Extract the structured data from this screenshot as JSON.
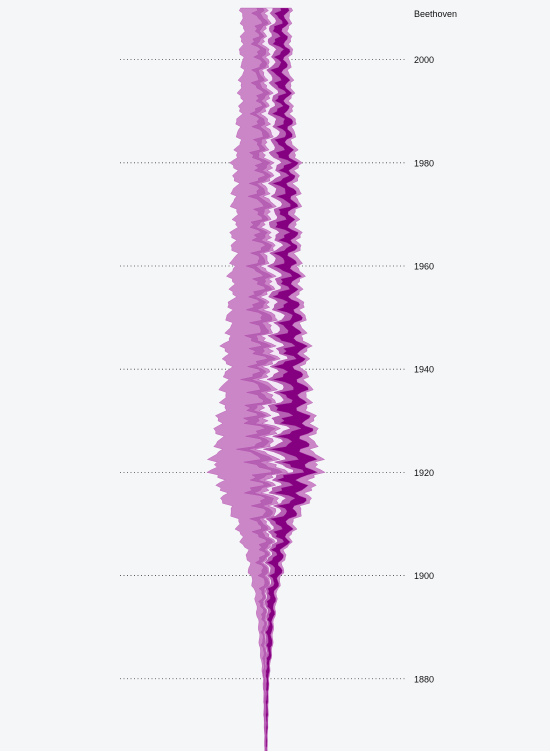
{
  "chart_data": {
    "type": "area",
    "title": "Beethoven",
    "orientation": "vertical",
    "ylim": [
      1866,
      2010
    ],
    "yticks": [
      1880,
      1900,
      1920,
      1940,
      1960,
      1980,
      2000
    ],
    "tick_labels": [
      "1880",
      "1900",
      "1920",
      "1940",
      "1960",
      "1980",
      "2000"
    ],
    "grid": true,
    "colors": {
      "background": "#f5f6f8",
      "light": "#cb86c8",
      "mid": "#b560b2",
      "pale": "#f3e9f6",
      "dark": "#850081"
    },
    "series": [
      {
        "color": "light",
        "values": [
          [
            1866,
            0.2
          ],
          [
            1880,
            0.6
          ],
          [
            1885,
            2
          ],
          [
            1890,
            3
          ],
          [
            1895,
            4
          ],
          [
            1900,
            8
          ],
          [
            1905,
            11
          ],
          [
            1910,
            16
          ],
          [
            1915,
            24
          ],
          [
            1920,
            31
          ],
          [
            1925,
            27
          ],
          [
            1930,
            24
          ],
          [
            1935,
            22
          ],
          [
            1940,
            21
          ],
          [
            1945,
            22
          ],
          [
            1950,
            19
          ],
          [
            1955,
            18
          ],
          [
            1960,
            18
          ],
          [
            1965,
            17
          ],
          [
            1970,
            16
          ],
          [
            1975,
            17
          ],
          [
            1980,
            16
          ],
          [
            1985,
            14
          ],
          [
            1990,
            13
          ],
          [
            1995,
            12
          ],
          [
            2000,
            11
          ],
          [
            2005,
            11
          ],
          [
            2010,
            10
          ]
        ]
      },
      {
        "color": "mid",
        "values": [
          [
            1866,
            0.2
          ],
          [
            1880,
            0.5
          ],
          [
            1885,
            1.2
          ],
          [
            1890,
            1.5
          ],
          [
            1895,
            2
          ],
          [
            1900,
            3
          ],
          [
            1905,
            4
          ],
          [
            1910,
            5
          ],
          [
            1915,
            6
          ],
          [
            1920,
            7
          ],
          [
            1925,
            7
          ],
          [
            1930,
            7
          ],
          [
            1935,
            6
          ],
          [
            1940,
            6
          ],
          [
            1945,
            6
          ],
          [
            1950,
            6
          ],
          [
            1955,
            5.5
          ],
          [
            1960,
            5
          ],
          [
            1965,
            5
          ],
          [
            1970,
            5
          ],
          [
            1975,
            5
          ],
          [
            1980,
            5
          ],
          [
            1985,
            4
          ],
          [
            1990,
            4
          ],
          [
            1995,
            4
          ],
          [
            2000,
            4
          ],
          [
            2005,
            4
          ],
          [
            2010,
            4
          ]
        ]
      },
      {
        "color": "light",
        "values": [
          [
            1866,
            0.2
          ],
          [
            1880,
            0.4
          ],
          [
            1885,
            0.6
          ],
          [
            1890,
            0.7
          ],
          [
            1895,
            0.8
          ],
          [
            1900,
            1
          ],
          [
            1905,
            1.5
          ],
          [
            1910,
            2.5
          ],
          [
            1915,
            4
          ],
          [
            1920,
            5
          ],
          [
            1925,
            4.5
          ],
          [
            1930,
            4
          ],
          [
            1935,
            4
          ],
          [
            1940,
            4
          ],
          [
            1945,
            4
          ],
          [
            1950,
            3.5
          ],
          [
            1955,
            3
          ],
          [
            1960,
            3
          ],
          [
            1965,
            3
          ],
          [
            1970,
            3
          ],
          [
            1975,
            3
          ],
          [
            1980,
            3
          ],
          [
            1985,
            3
          ],
          [
            1990,
            3
          ],
          [
            1995,
            2.5
          ],
          [
            2000,
            2.5
          ],
          [
            2005,
            2.5
          ],
          [
            2010,
            2.5
          ]
        ]
      },
      {
        "color": "pale",
        "values": [
          [
            1866,
            0.2
          ],
          [
            1880,
            0.3
          ],
          [
            1885,
            0.5
          ],
          [
            1890,
            0.6
          ],
          [
            1895,
            0.8
          ],
          [
            1900,
            1
          ],
          [
            1905,
            1.5
          ],
          [
            1910,
            2.5
          ],
          [
            1915,
            4
          ],
          [
            1920,
            5
          ],
          [
            1925,
            6
          ],
          [
            1930,
            6.5
          ],
          [
            1935,
            6
          ],
          [
            1940,
            5.5
          ],
          [
            1945,
            6
          ],
          [
            1950,
            5.5
          ],
          [
            1955,
            5
          ],
          [
            1960,
            5
          ],
          [
            1965,
            5
          ],
          [
            1970,
            5
          ],
          [
            1975,
            5
          ],
          [
            1980,
            5
          ],
          [
            1985,
            5
          ],
          [
            1990,
            4.5
          ],
          [
            1995,
            4
          ],
          [
            2000,
            4
          ],
          [
            2005,
            4
          ],
          [
            2010,
            4
          ]
        ]
      },
      {
        "color": "mid",
        "values": [
          [
            1866,
            0.2
          ],
          [
            1880,
            0.4
          ],
          [
            1885,
            0.8
          ],
          [
            1890,
            1
          ],
          [
            1895,
            1.5
          ],
          [
            1900,
            2
          ],
          [
            1905,
            3
          ],
          [
            1910,
            4
          ],
          [
            1915,
            5
          ],
          [
            1920,
            6
          ],
          [
            1925,
            6
          ],
          [
            1930,
            6
          ],
          [
            1935,
            5.5
          ],
          [
            1940,
            5
          ],
          [
            1945,
            5
          ],
          [
            1950,
            5
          ],
          [
            1955,
            5
          ],
          [
            1960,
            5
          ],
          [
            1965,
            5
          ],
          [
            1970,
            5
          ],
          [
            1975,
            5
          ],
          [
            1980,
            5
          ],
          [
            1985,
            4.5
          ],
          [
            1990,
            4.5
          ],
          [
            1995,
            4
          ],
          [
            2000,
            4
          ],
          [
            2005,
            4
          ],
          [
            2010,
            4
          ]
        ]
      },
      {
        "color": "dark",
        "values": [
          [
            1866,
            0.6
          ],
          [
            1880,
            1.5
          ],
          [
            1885,
            2.5
          ],
          [
            1890,
            3
          ],
          [
            1895,
            4
          ],
          [
            1900,
            5
          ],
          [
            1905,
            6
          ],
          [
            1910,
            8
          ],
          [
            1915,
            11
          ],
          [
            1920,
            13
          ],
          [
            1925,
            14
          ],
          [
            1930,
            13.5
          ],
          [
            1935,
            12
          ],
          [
            1940,
            11
          ],
          [
            1945,
            10
          ],
          [
            1950,
            9
          ],
          [
            1955,
            8.5
          ],
          [
            1960,
            8
          ],
          [
            1965,
            7.5
          ],
          [
            1970,
            7
          ],
          [
            1975,
            7
          ],
          [
            1980,
            7
          ],
          [
            1985,
            6
          ],
          [
            1990,
            6
          ],
          [
            1995,
            6
          ],
          [
            2000,
            6
          ],
          [
            2005,
            6
          ],
          [
            2010,
            6
          ]
        ]
      },
      {
        "color": "light",
        "values": [
          [
            1866,
            0.2
          ],
          [
            1880,
            0.3
          ],
          [
            1885,
            0.5
          ],
          [
            1890,
            0.8
          ],
          [
            1895,
            1
          ],
          [
            1900,
            1.5
          ],
          [
            1905,
            2
          ],
          [
            1910,
            3
          ],
          [
            1915,
            5
          ],
          [
            1920,
            7
          ],
          [
            1925,
            6
          ],
          [
            1930,
            5
          ],
          [
            1935,
            4.5
          ],
          [
            1940,
            4
          ],
          [
            1945,
            4
          ],
          [
            1950,
            4
          ],
          [
            1955,
            4
          ],
          [
            1960,
            4
          ],
          [
            1965,
            3.5
          ],
          [
            1970,
            3.5
          ],
          [
            1975,
            3.5
          ],
          [
            1980,
            3.5
          ],
          [
            1985,
            3
          ],
          [
            1990,
            3
          ],
          [
            1995,
            3
          ],
          [
            2000,
            3
          ],
          [
            2005,
            3
          ],
          [
            2010,
            3
          ]
        ]
      }
    ]
  }
}
